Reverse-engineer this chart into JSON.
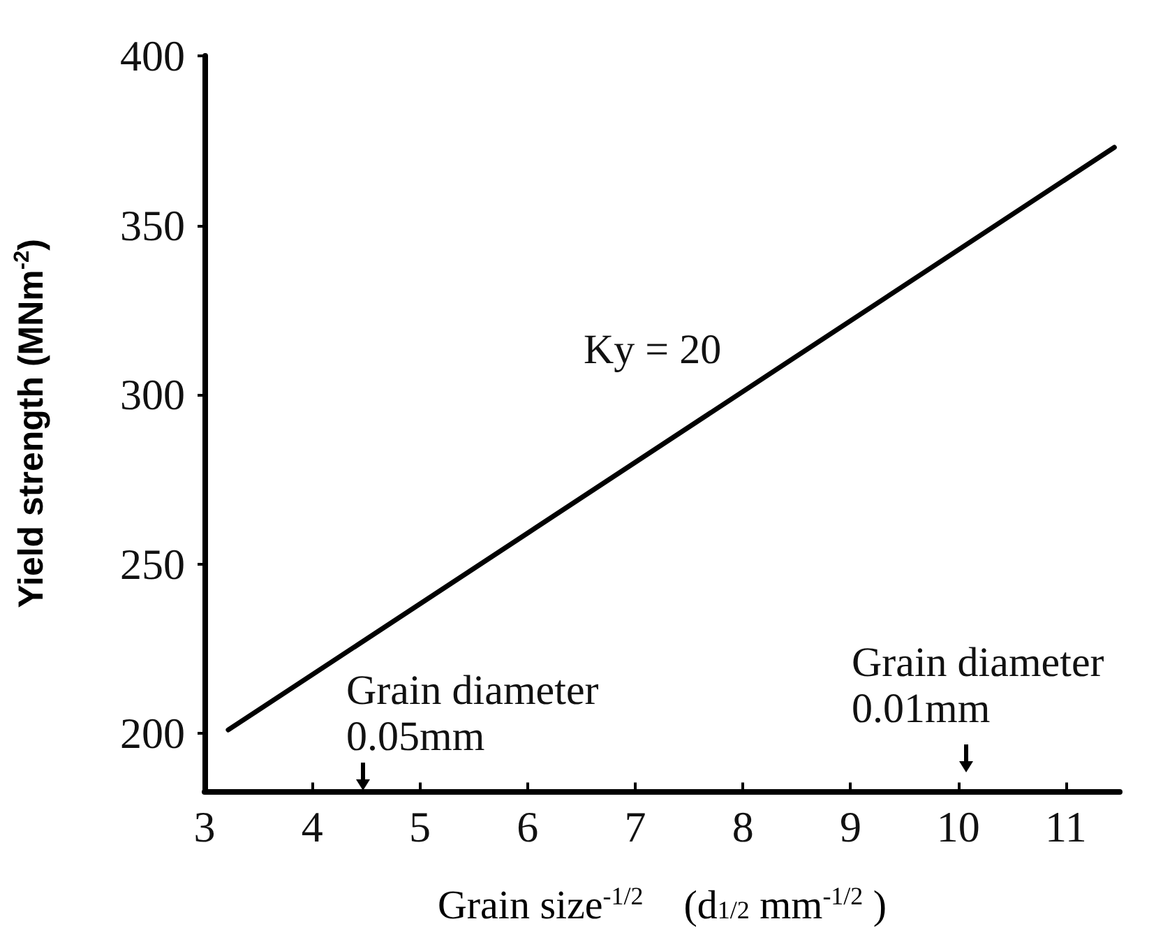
{
  "chart_data": {
    "type": "line",
    "xlabel": "Grain size$^{-1/2}$    (d$_{1/2}$ mm$^{-1/2}$ )",
    "ylabel": "Yield strength (MNm$^{-2}$)",
    "series": [
      {
        "color": "#000000",
        "x": [
          3.22,
          11.45
        ],
        "values": [
          201,
          373
        ]
      }
    ],
    "xlim": [
      3,
      11.5
    ],
    "xticks": [
      3,
      4,
      5,
      6,
      7,
      8,
      9,
      10,
      11
    ],
    "ylim": [
      183,
      400
    ],
    "yticks": [
      200,
      250,
      300,
      350,
      400
    ],
    "grid": false,
    "marker": "none",
    "line_style": "solid",
    "annotations": [
      "Ky = 20",
      "Grain diameter\n0.05mm",
      "Grain diameter\n0.01mm"
    ]
  }
}
